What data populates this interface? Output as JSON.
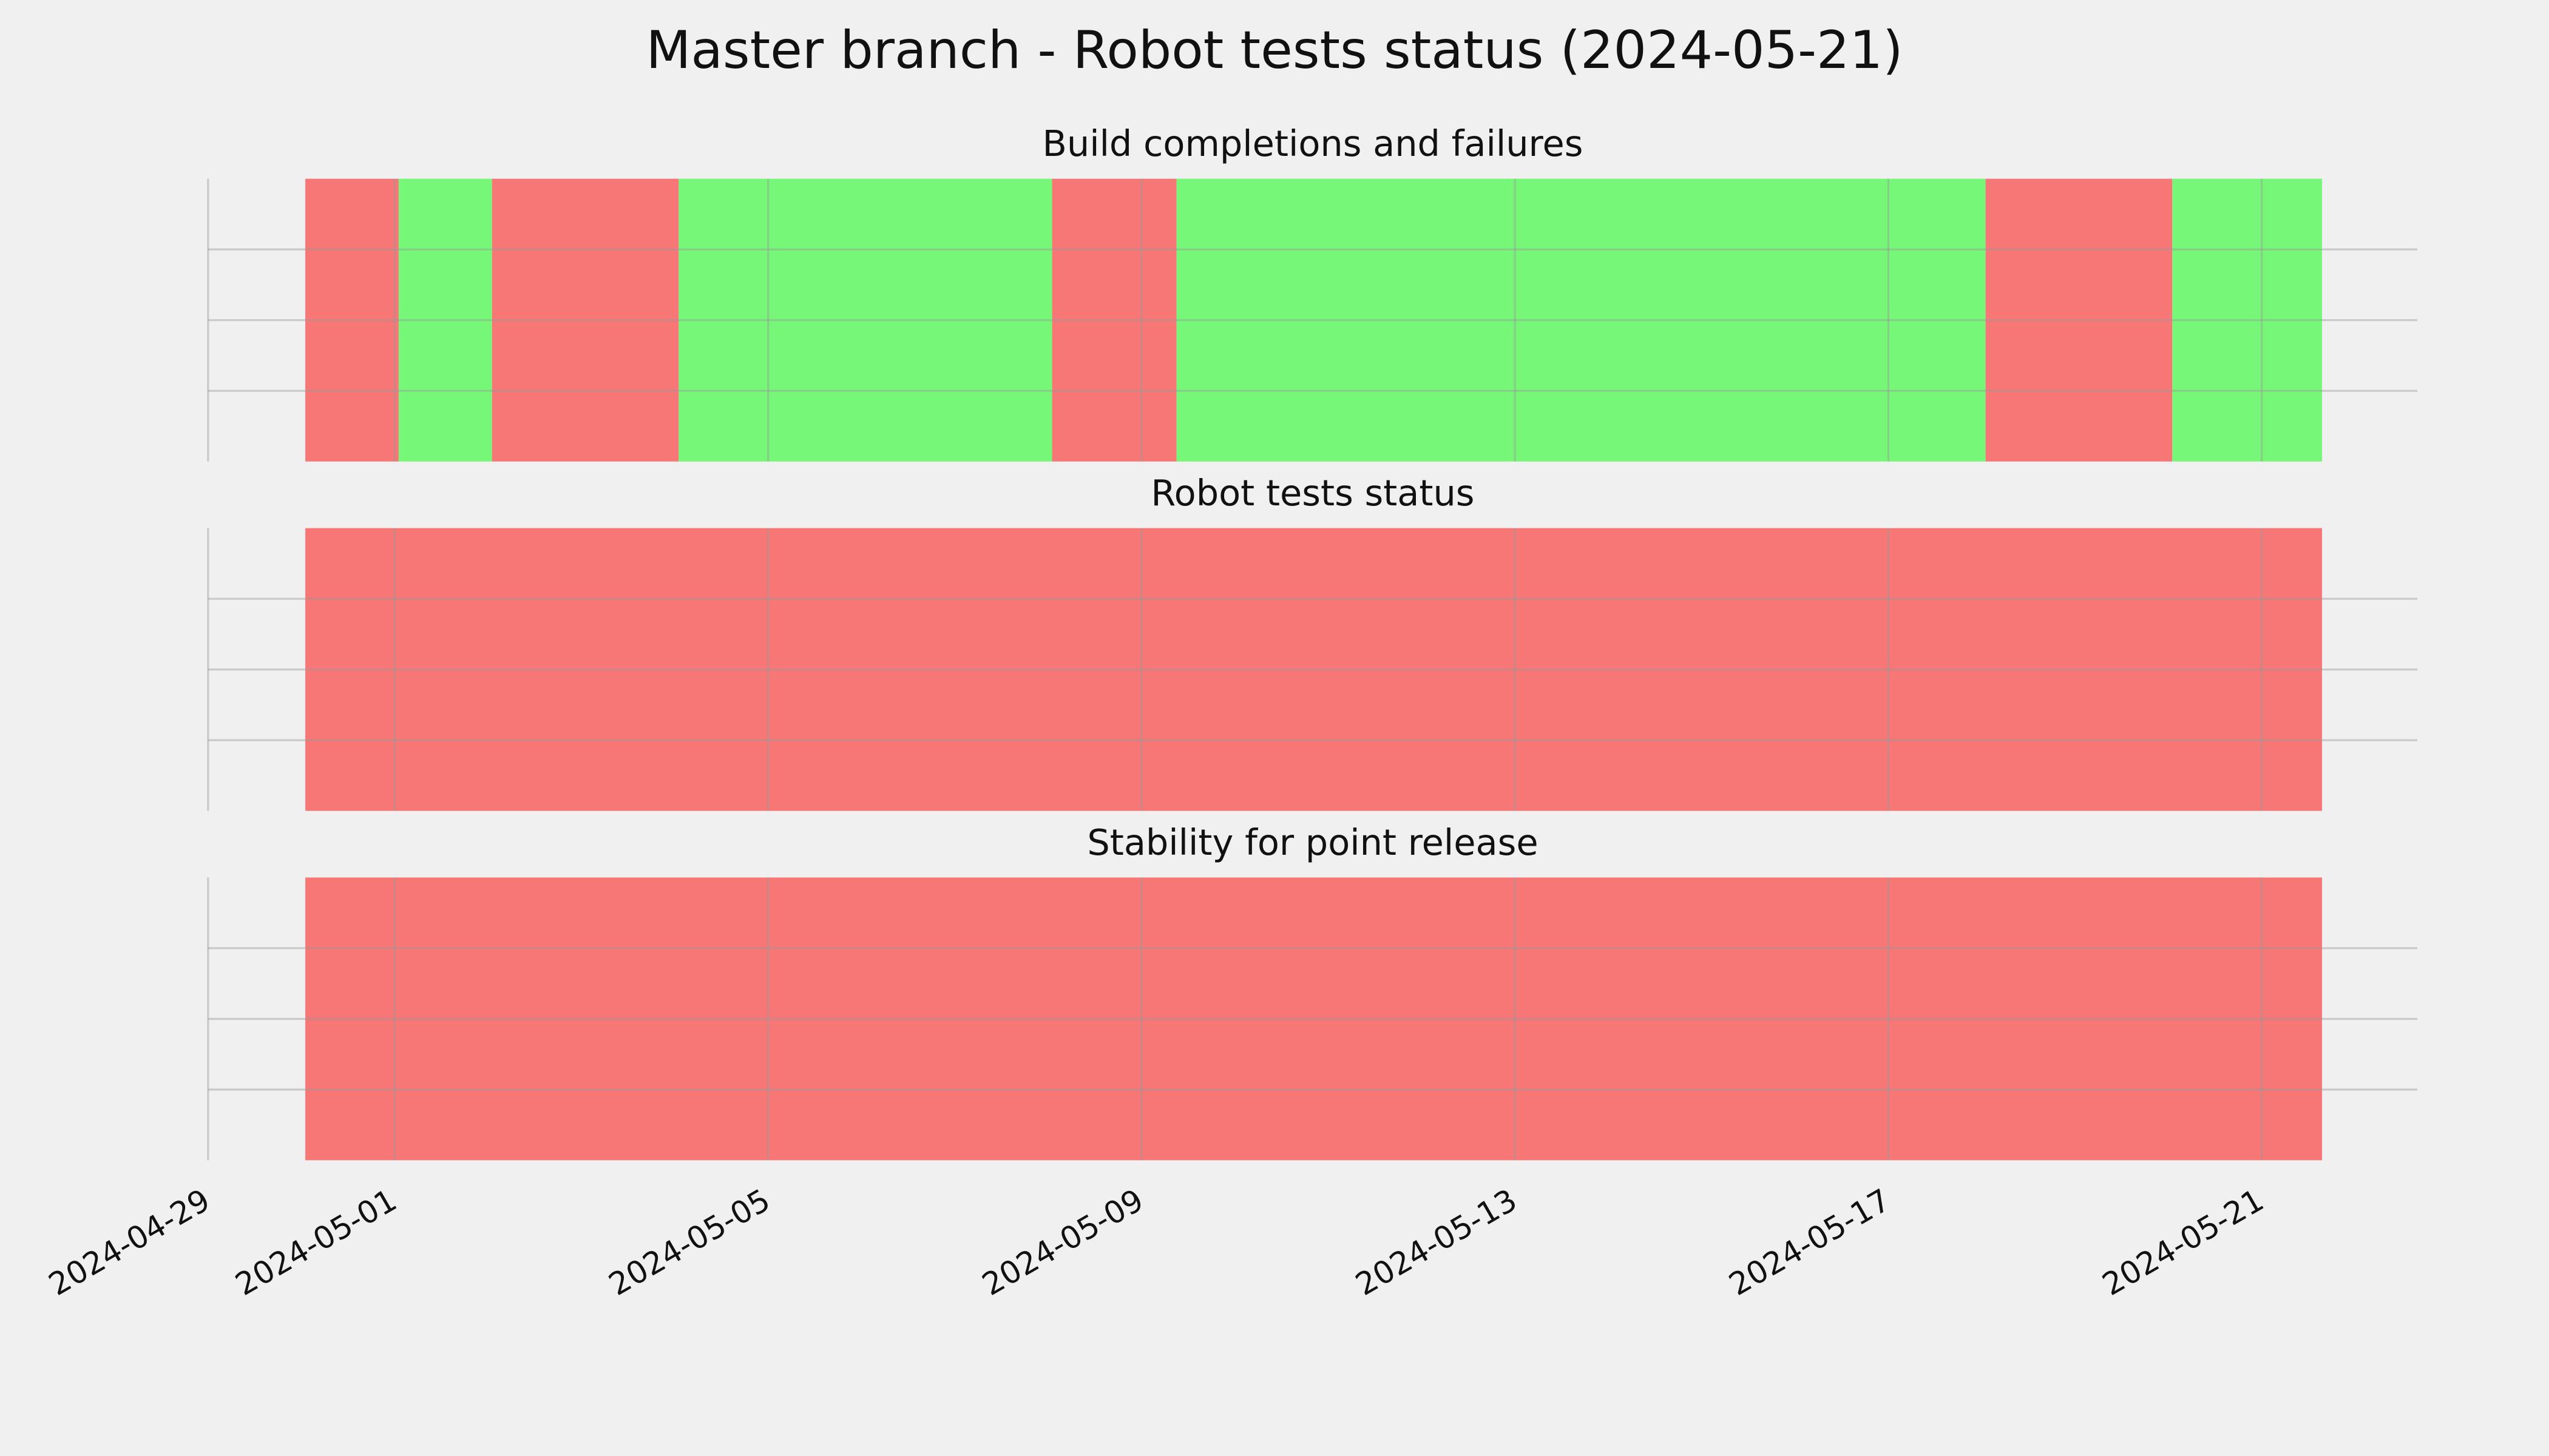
{
  "title": "Master branch - Robot tests status (2024-05-21)",
  "chart_data": [
    {
      "type": "timeline",
      "title": "Build completions and failures",
      "starts": [
        "2024-04-30T01:00",
        "2024-05-01T01:00",
        "2024-05-02T01:00",
        "2024-05-04T01:00",
        "2024-05-08T01:00",
        "2024-05-09T09:00",
        "2024-05-18T01:00",
        "2024-05-20T01:00"
      ],
      "ends": [
        "2024-05-01T01:00",
        "2024-05-02T01:00",
        "2024-05-04T01:00",
        "2024-05-08T01:00",
        "2024-05-09T09:00",
        "2024-05-18T01:00",
        "2024-05-20T01:00",
        "2024-05-21T15:30"
      ],
      "colors": [
        "#f77777",
        "#77f777",
        "#f77777",
        "#77f777",
        "#f77777",
        "#77f777",
        "#f77777",
        "#77f777"
      ],
      "xlim": [
        "2024-04-29",
        "2024-05-22T16:00"
      ],
      "xticks": [
        "2024-04-29",
        "2024-05-01",
        "2024-05-05",
        "2024-05-09",
        "2024-05-13",
        "2024-05-17",
        "2024-05-21"
      ],
      "grid": true
    },
    {
      "type": "timeline",
      "title": "Robot tests status",
      "starts": [
        "2024-04-30T01:00"
      ],
      "ends": [
        "2024-05-21T15:30"
      ],
      "colors": [
        "#f77777"
      ],
      "xlim": [
        "2024-04-29",
        "2024-05-22T16:00"
      ],
      "xticks": [
        "2024-04-29",
        "2024-05-01",
        "2024-05-05",
        "2024-05-09",
        "2024-05-13",
        "2024-05-17",
        "2024-05-21"
      ],
      "grid": true
    },
    {
      "type": "timeline",
      "title": "Stability for point release",
      "starts": [
        "2024-04-30T01:00"
      ],
      "ends": [
        "2024-05-21T15:30"
      ],
      "colors": [
        "#f77777"
      ],
      "xlim": [
        "2024-04-29",
        "2024-05-22T16:00"
      ],
      "xticks": [
        "2024-04-29",
        "2024-05-01",
        "2024-05-05",
        "2024-05-09",
        "2024-05-13",
        "2024-05-17",
        "2024-05-21"
      ],
      "grid": true
    }
  ]
}
